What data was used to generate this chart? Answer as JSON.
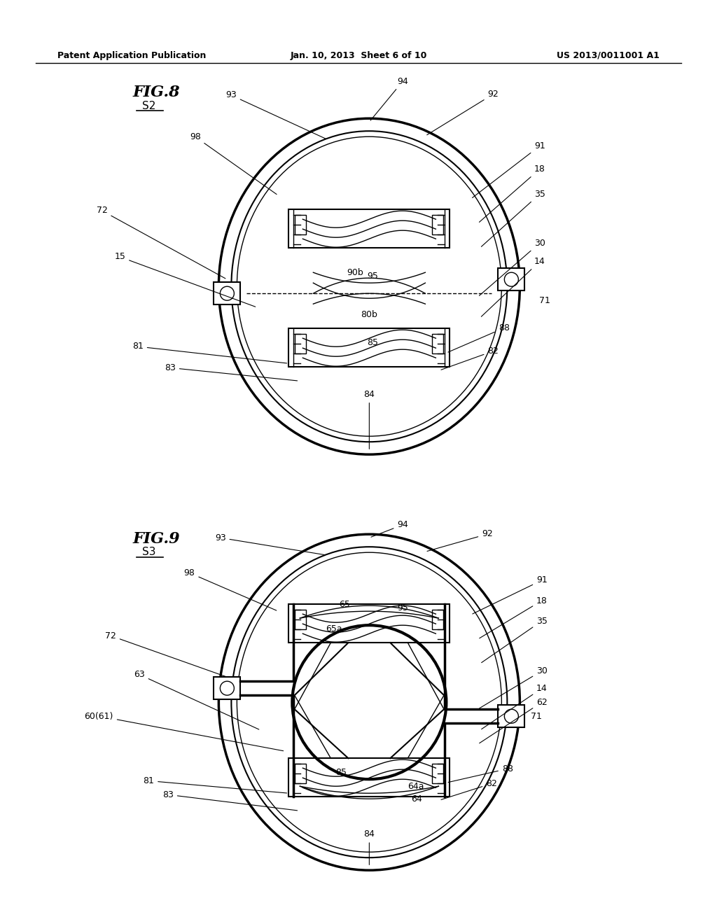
{
  "bg_color": "#ffffff",
  "line_color": "#000000",
  "header_left": "Patent Application Publication",
  "header_center": "Jan. 10, 2013  Sheet 6 of 10",
  "header_right": "US 2013/0011001 A1",
  "fig8_title": "FIG.8",
  "fig8_sub": "S2",
  "fig9_title": "FIG.9",
  "fig9_sub": "S3"
}
